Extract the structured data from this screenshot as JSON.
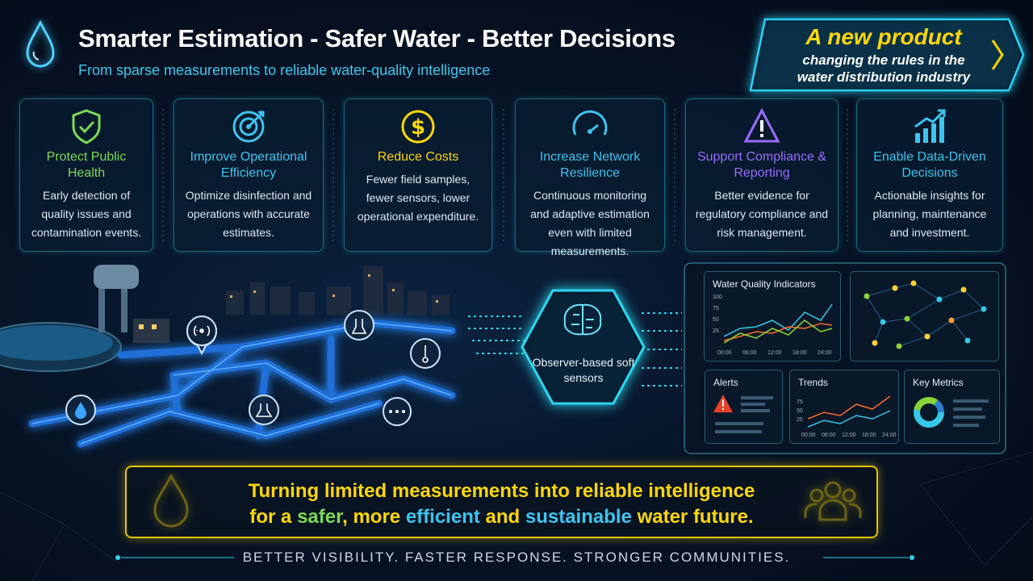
{
  "header": {
    "title": "Smarter Estimation - Safer Water - Better Decisions",
    "subtitle": "From sparse measurements to reliable water-quality intelligence"
  },
  "badge": {
    "title": "A new product",
    "lines": [
      "changing the rules in the",
      "water distribution industry"
    ]
  },
  "cards": [
    {
      "title": "Protect Public Health",
      "text": "Early detection of quality issues and contamination events."
    },
    {
      "title": "Improve Operational Efficiency",
      "text": "Optimize disinfection and operations with accurate estimates."
    },
    {
      "title": "Reduce Costs",
      "text": "Fewer field samples, fewer sensors, lower operational expenditure."
    },
    {
      "title": "Increase Network Resilience",
      "text": "Continuous monitoring and adaptive estimation even with limited measurements."
    },
    {
      "title": "Support Compliance & Reporting",
      "text": "Better evidence for regulatory compliance and risk management."
    },
    {
      "title": "Enable Data-Driven Decisions",
      "text": "Actionable insights for planning, maintenance and investment."
    }
  ],
  "observer": {
    "label": "Observer-based soft sensors"
  },
  "dashboard": {
    "quality": {
      "title": "Water Quality Indicators",
      "yticks": [
        "100",
        "75",
        "50",
        "25"
      ],
      "xticks": [
        "00:00",
        "06:00",
        "12:00",
        "18:00",
        "24:00"
      ]
    },
    "alerts": {
      "title": "Alerts"
    },
    "trends": {
      "title": "Trends",
      "yticks": [
        "75",
        "50",
        "25"
      ],
      "xticks": [
        "00:00",
        "06:00",
        "12:00",
        "18:00",
        "24:00"
      ]
    },
    "metrics": {
      "title": "Key Metrics"
    }
  },
  "banner": {
    "line1": "Turning limited measurements into reliable intelligence",
    "line2": [
      "for a ",
      "safer",
      ", more ",
      "efficient",
      " and ",
      "sustainable",
      " water future."
    ]
  },
  "footer": {
    "tagline": "BETTER VISIBILITY. FASTER RESPONSE. STRONGER COMMUNITIES."
  }
}
